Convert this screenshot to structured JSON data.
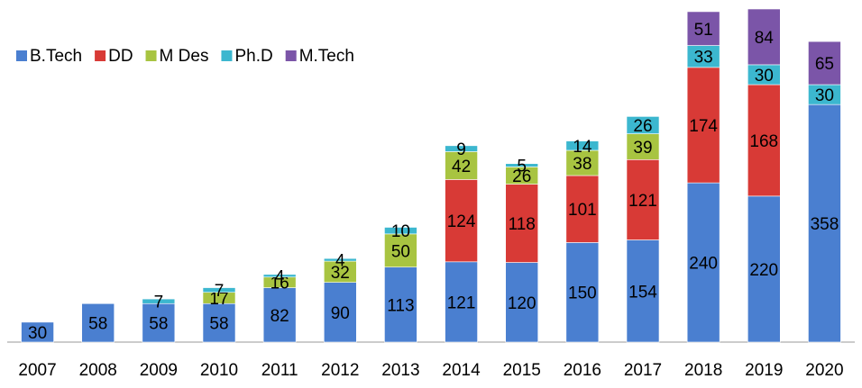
{
  "chart_data": {
    "type": "stacked_bar",
    "categories": [
      "2007",
      "2008",
      "2009",
      "2010",
      "2011",
      "2012",
      "2013",
      "2014",
      "2015",
      "2016",
      "2017",
      "2018",
      "2019",
      "2020"
    ],
    "series": [
      {
        "name": "B.Tech",
        "color": "#4a7fd0",
        "values": [
          30,
          58,
          58,
          58,
          82,
          90,
          113,
          121,
          120,
          150,
          154,
          240,
          220,
          358
        ]
      },
      {
        "name": "DD",
        "color": "#d83a36",
        "values": [
          null,
          null,
          null,
          null,
          null,
          null,
          null,
          124,
          118,
          101,
          121,
          174,
          168,
          null
        ]
      },
      {
        "name": "M Des",
        "color": "#a8c441",
        "values": [
          null,
          null,
          null,
          17,
          16,
          32,
          50,
          42,
          26,
          38,
          39,
          null,
          null,
          null
        ]
      },
      {
        "name": "Ph.D",
        "color": "#3cb7cf",
        "values": [
          null,
          null,
          7,
          7,
          4,
          4,
          10,
          9,
          5,
          14,
          26,
          33,
          30,
          30
        ]
      },
      {
        "name": "M.Tech",
        "color": "#7b55a8",
        "values": [
          null,
          null,
          null,
          null,
          null,
          null,
          null,
          null,
          null,
          null,
          null,
          51,
          84,
          65
        ]
      }
    ],
    "legend": "top-left"
  }
}
